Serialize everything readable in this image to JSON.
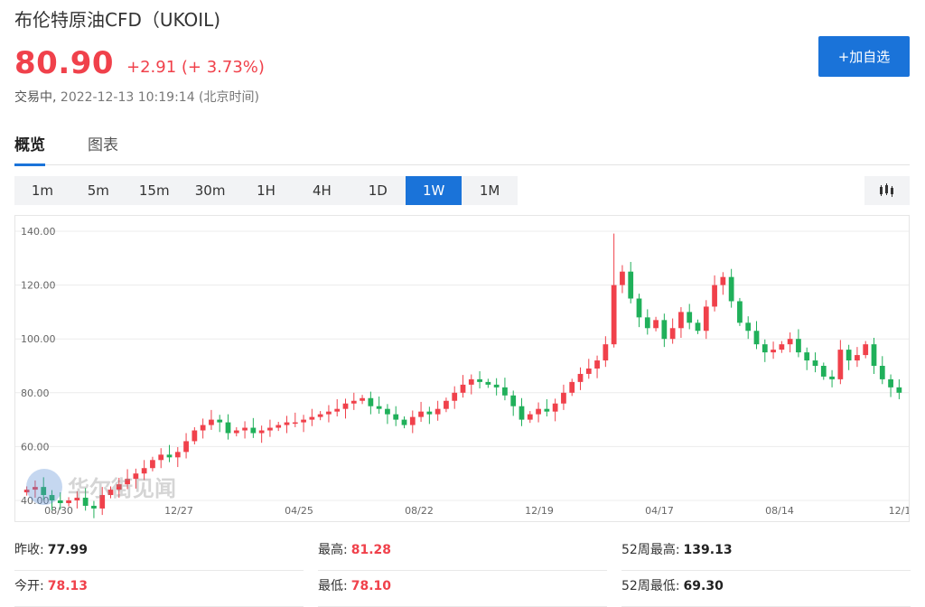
{
  "header": {
    "title": "布伦特原油CFD（UKOIL)",
    "price": "80.90",
    "change": "+2.91 (+ 3.73%)",
    "status": "交易中,",
    "timestamp": "2022-12-13 10:19:14 (北京时间)",
    "add_label": "+加自选"
  },
  "tabs": [
    {
      "label": "概览",
      "active": true
    },
    {
      "label": "图表",
      "active": false
    }
  ],
  "periods": [
    {
      "label": "1m"
    },
    {
      "label": "5m"
    },
    {
      "label": "15m"
    },
    {
      "label": "30m"
    },
    {
      "label": "1H"
    },
    {
      "label": "4H"
    },
    {
      "label": "1D"
    },
    {
      "label": "1W",
      "active": true
    },
    {
      "label": "1M"
    }
  ],
  "chart_type_icon": "candlestick-bars-icon",
  "watermark": "华尔街见闻",
  "chart_data": {
    "type": "candlestick",
    "ylim": [
      40,
      140
    ],
    "y_ticks": [
      "140.00",
      "120.00",
      "100.00",
      "80.00",
      "60.00",
      "40.00"
    ],
    "x_tick_labels": [
      "08/30",
      "12/27",
      "04/25",
      "08/22",
      "12/19",
      "04/17",
      "08/14",
      "12/1"
    ],
    "up_color": "#f0414b",
    "down_color": "#20b05a",
    "close_path": [
      44,
      45,
      42,
      40,
      39,
      40,
      41,
      38,
      37,
      42,
      44,
      46,
      48,
      50,
      52,
      55,
      57,
      56,
      58,
      62,
      66,
      68,
      70,
      69,
      65,
      66,
      67,
      65,
      66,
      67,
      68,
      69,
      69,
      70,
      71,
      72,
      73,
      74,
      76,
      77,
      78,
      75,
      74,
      72,
      70,
      68,
      71,
      73,
      72,
      74,
      77,
      80,
      83,
      85,
      84,
      83,
      82,
      79,
      75,
      70,
      72,
      74,
      73,
      76,
      80,
      84,
      87,
      89,
      92,
      98,
      120,
      125,
      115,
      108,
      104,
      107,
      100,
      104,
      110,
      106,
      103,
      112,
      120,
      123,
      114,
      106,
      103,
      98,
      95,
      96,
      98,
      100,
      95,
      92,
      90,
      86,
      85,
      96,
      92,
      94,
      98,
      90,
      85,
      82,
      80
    ],
    "spike_high": 139.13,
    "spike_index": 70
  },
  "stats": [
    [
      {
        "label": "昨收:",
        "value": "77.99",
        "tone": "dark"
      },
      {
        "label": "最高:",
        "value": "81.28",
        "tone": "up"
      },
      {
        "label": "52周最高:",
        "value": "139.13",
        "tone": "dark"
      }
    ],
    [
      {
        "label": "今开:",
        "value": "78.13",
        "tone": "up"
      },
      {
        "label": "最低:",
        "value": "78.10",
        "tone": "up"
      },
      {
        "label": "52周最低:",
        "value": "69.30",
        "tone": "dark"
      }
    ]
  ]
}
